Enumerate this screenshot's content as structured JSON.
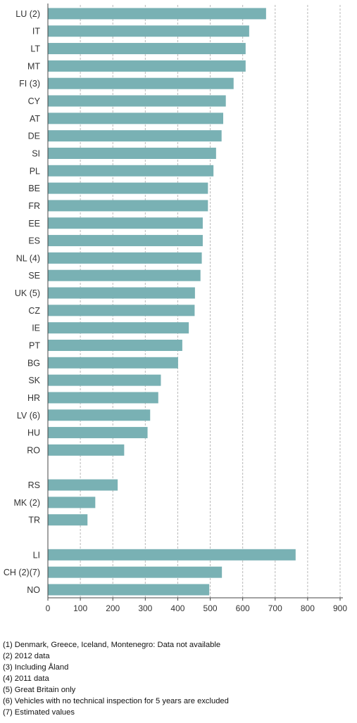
{
  "chart_data": {
    "type": "bar",
    "orientation": "horizontal",
    "categories": [
      "LU (2)",
      "IT",
      "LT",
      "MT",
      "FI (3)",
      "CY",
      "AT",
      "DE",
      "SI",
      "PL",
      "BE",
      "FR",
      "EE",
      "ES",
      "NL (4)",
      "SE",
      "UK (5)",
      "CZ",
      "IE",
      "PT",
      "BG",
      "SK",
      "HR",
      "LV (6)",
      "HU",
      "RO",
      "",
      "RS",
      "MK (2)",
      "TR",
      "",
      "LI",
      "CH (2)(7)",
      "NO"
    ],
    "values": [
      672,
      620,
      609,
      609,
      572,
      548,
      540,
      535,
      518,
      510,
      493,
      493,
      477,
      477,
      474,
      470,
      453,
      452,
      434,
      414,
      401,
      348,
      340,
      315,
      307,
      235,
      null,
      215,
      146,
      122,
      null,
      763,
      536,
      497
    ],
    "xlim": [
      0,
      900
    ],
    "xticks": [
      0,
      100,
      200,
      300,
      400,
      500,
      600,
      700,
      800,
      900
    ],
    "grid": true,
    "bar_color": "#79B1B4",
    "grid_color": "#B8B8B8"
  },
  "footnotes": [
    "(1) Denmark, Greece, Iceland, Montenegro: Data not available",
    "(2) 2012 data",
    "(3) Including Åland",
    "(4) 2011 data",
    "(5) Great Britain only",
    "(6) Vehicles with no technical inspection for 5 years are excluded",
    "(7) Estimated values"
  ]
}
